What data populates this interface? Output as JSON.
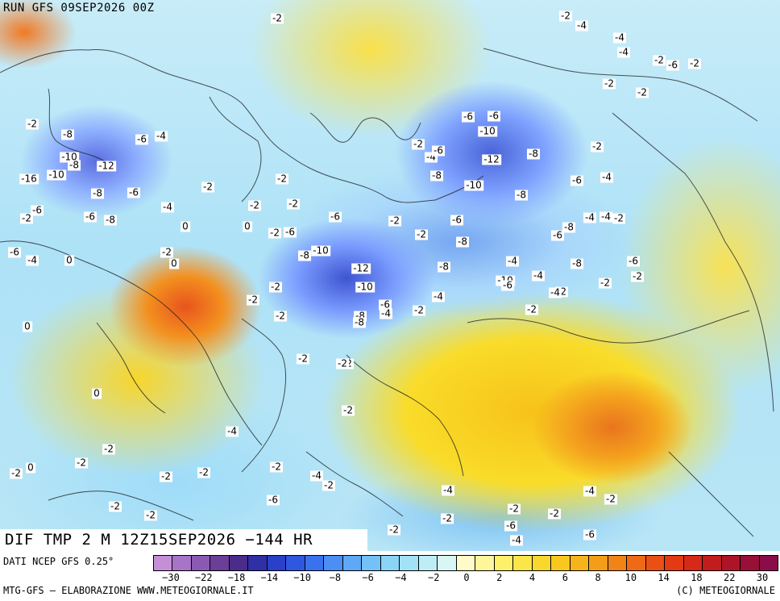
{
  "header": {
    "run_title": "RUN GFS 09SEP2026 00Z"
  },
  "map": {
    "valid_title": "DIF TMP 2 M 12Z15SEP2026 −144 HR",
    "contour_labels": [
      "-2",
      "-2",
      "-4",
      "-4",
      "-4",
      "-2",
      "-6",
      "-2",
      "-2",
      "-2",
      "-2",
      "-8",
      "-6",
      "-4",
      "-16",
      "-10",
      "-10",
      "-8",
      "-12",
      "-8",
      "-6",
      "-2",
      "-2",
      "-2",
      "-6",
      "-2",
      "-6",
      "-8",
      "-4",
      "0",
      "0",
      "-6",
      "-4",
      "0",
      "-2",
      "0",
      "-2",
      "0",
      "0",
      "-2",
      "-2",
      "-2",
      "-2",
      "-6",
      "-8",
      "-10",
      "-6",
      "-12",
      "-10",
      "-8",
      "-6",
      "-4",
      "-2",
      "-4",
      "-6",
      "-8",
      "-2",
      "-8",
      "-2",
      "-2",
      "-6",
      "-6",
      "-2",
      "-4",
      "-6",
      "-8",
      "-10",
      "-12",
      "-10",
      "-8",
      "-6",
      "-4",
      "-2",
      "-8",
      "-4",
      "-4",
      "-2",
      "-4",
      "-6",
      "-8",
      "-8",
      "-6",
      "-2",
      "-2",
      "-2",
      "-2",
      "-2",
      "-2",
      "-4",
      "-2",
      "-2",
      "-2",
      "-2",
      "-2",
      "-2",
      "-2",
      "-4",
      "-6",
      "-4",
      "-2",
      "-2",
      "-4",
      "-2",
      "-6",
      "-2",
      "-4",
      "-2",
      "-2",
      "0",
      "-6",
      "-10",
      "-8",
      "-6",
      "-4",
      "-2",
      "-2",
      "-4"
    ]
  },
  "legend": {
    "source_text": "DATI NCEP GFS 0.25°",
    "tick_labels": [
      "−30",
      "−22",
      "−18",
      "−14",
      "−10",
      "−8",
      "−6",
      "−4",
      "−2",
      "0",
      "2",
      "4",
      "6",
      "8",
      "10",
      "14",
      "18",
      "22",
      "30"
    ],
    "colors": [
      "#c58fd8",
      "#a774c8",
      "#8a5ab2",
      "#6b3e98",
      "#4a2c8a",
      "#2f2fa6",
      "#2a40c8",
      "#2f58e0",
      "#3a72ee",
      "#4b8ef4",
      "#5ea9f6",
      "#74c1f7",
      "#8ad4f8",
      "#a2e2f7",
      "#bdeef6",
      "#d8f6f3",
      "#fffbc8",
      "#fff59a",
      "#fdf06a",
      "#fbe64a",
      "#f9d82e",
      "#f8c81e",
      "#f6b41a",
      "#f49d18",
      "#f28416",
      "#ef6a16",
      "#ea5014",
      "#e33a14",
      "#d52a18",
      "#c21c1c",
      "#ad1428",
      "#981038",
      "#8a0c48"
    ],
    "credit_left": "MTG-GFS – ELABORAZIONE WWW.METEOGIORNALE.IT",
    "credit_right": "(C) METEOGIORNALE"
  }
}
